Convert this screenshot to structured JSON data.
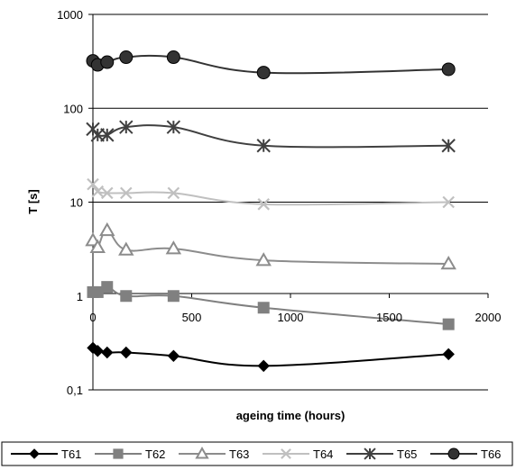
{
  "chart_data": {
    "type": "line",
    "title": "",
    "xlabel": "ageing time (hours)",
    "ylabel": "T [s]",
    "yscale": "log",
    "ylim": [
      0.1,
      1000
    ],
    "xlim": [
      0,
      2000
    ],
    "y_ticks": [
      "0,1",
      "1",
      "10",
      "100",
      "1000"
    ],
    "x_ticks": [
      "0",
      "500",
      "1000",
      "1500",
      "2000"
    ],
    "grid": "horizontal major",
    "legend_position": "bottom",
    "x": [
      0,
      24,
      72,
      168,
      408,
      864,
      1800
    ],
    "series": [
      {
        "name": "T61",
        "marker": "diamond",
        "color": "#000000",
        "values": [
          0.28,
          0.26,
          0.25,
          0.25,
          0.23,
          0.18,
          0.24
        ]
      },
      {
        "name": "T62",
        "marker": "square",
        "color": "#808080",
        "values": [
          1.1,
          1.1,
          1.25,
          1.0,
          1.0,
          0.75,
          0.5
        ]
      },
      {
        "name": "T63",
        "marker": "triangle",
        "color": "#8c8c8c",
        "values": [
          3.9,
          3.3,
          5.0,
          3.1,
          3.2,
          2.4,
          2.2
        ]
      },
      {
        "name": "T64",
        "marker": "x",
        "color": "#c0c0c0",
        "values": [
          15.5,
          13.0,
          12.5,
          12.5,
          12.5,
          9.5,
          10.0
        ]
      },
      {
        "name": "T65",
        "marker": "star",
        "color": "#404040",
        "values": [
          60,
          52,
          52,
          63,
          63,
          40,
          40
        ]
      },
      {
        "name": "T66",
        "marker": "circle",
        "color": "#333333",
        "values": [
          320,
          290,
          310,
          350,
          350,
          240,
          260
        ]
      }
    ]
  }
}
